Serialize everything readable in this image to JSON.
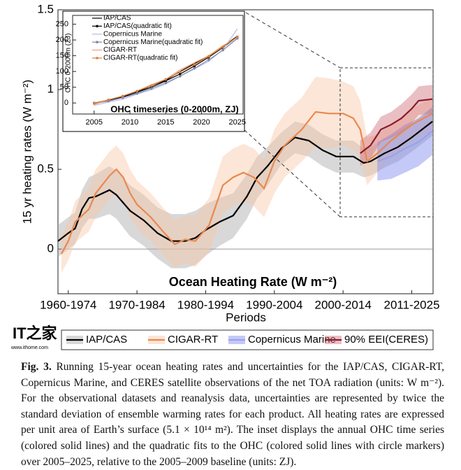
{
  "chart_data": [
    {
      "type": "line",
      "title": "Ocean Heating Rate (W m⁻²)",
      "xlabel": "Periods",
      "ylabel": "15 yr heating rates (W m⁻²)",
      "xlim": [
        1958.5,
        2013.1
      ],
      "ylim": [
        -0.28,
        1.5
      ],
      "xticks": [
        {
          "value": 1960,
          "label": "1960-1974"
        },
        {
          "value": 1970,
          "label": "1970-1984"
        },
        {
          "value": 1980,
          "label": "1980-1994"
        },
        {
          "value": 1990,
          "label": "1990-2004"
        },
        {
          "value": 2000,
          "label": "2000-2014"
        },
        {
          "value": 2010,
          "label": "2011-2025"
        }
      ],
      "yticks": [
        0,
        0.5,
        1,
        1.5
      ],
      "grid": false,
      "legend": "bottom",
      "series": [
        {
          "name": "IAP/CAS",
          "color": "#000000",
          "band_color": "#a9a9a9",
          "x": [
            1958.5,
            1960,
            1961,
            1962,
            1963,
            1964,
            1966,
            1967,
            1969,
            1971,
            1973,
            1975,
            1977,
            1978.5,
            1980,
            1982,
            1984,
            1986,
            1987.5,
            1989,
            1991,
            1993,
            1995,
            1997,
            1999,
            2001.5,
            2003,
            2004,
            2006,
            2008,
            2010,
            2013
          ],
          "values": [
            0.05,
            0.1,
            0.13,
            0.25,
            0.32,
            0.33,
            0.37,
            0.34,
            0.24,
            0.18,
            0.1,
            0.05,
            0.05,
            0.07,
            0.12,
            0.17,
            0.21,
            0.33,
            0.45,
            0.52,
            0.63,
            0.7,
            0.68,
            0.62,
            0.58,
            0.58,
            0.54,
            0.55,
            0.6,
            0.64,
            0.7,
            0.8
          ],
          "errors": [
            0.1,
            0.1,
            0.1,
            0.12,
            0.13,
            0.14,
            0.15,
            0.15,
            0.16,
            0.16,
            0.16,
            0.17,
            0.17,
            0.17,
            0.16,
            0.15,
            0.14,
            0.14,
            0.13,
            0.12,
            0.1,
            0.1,
            0.1,
            0.1,
            0.1,
            0.1,
            0.09,
            0.09,
            0.09,
            0.09,
            0.09,
            0.09
          ]
        },
        {
          "name": "CIGAR-RT",
          "color": "#e8894f",
          "band_color": "#f9c8a8",
          "x": [
            1959,
            1960,
            1961,
            1963,
            1964,
            1966,
            1967,
            1968,
            1969,
            1970,
            1972,
            1974,
            1975.5,
            1977,
            1978.5,
            1980.5,
            1982.5,
            1984,
            1985.5,
            1987,
            1988.5,
            1990,
            1991.5,
            1994,
            1996,
            1998,
            2000,
            2001.5,
            2002.5,
            2003.5,
            2005,
            2007,
            2010,
            2013
          ],
          "values": [
            -0.03,
            0.05,
            0.17,
            0.25,
            0.35,
            0.46,
            0.5,
            0.45,
            0.35,
            0.28,
            0.2,
            0.1,
            0.03,
            0.06,
            0.05,
            0.15,
            0.4,
            0.45,
            0.48,
            0.45,
            0.38,
            0.55,
            0.65,
            0.75,
            0.86,
            0.85,
            0.85,
            0.82,
            0.75,
            0.55,
            0.6,
            0.68,
            0.78,
            0.85
          ],
          "errors": [
            0.12,
            0.12,
            0.13,
            0.14,
            0.15,
            0.15,
            0.15,
            0.15,
            0.15,
            0.15,
            0.15,
            0.15,
            0.15,
            0.15,
            0.16,
            0.17,
            0.18,
            0.18,
            0.18,
            0.18,
            0.18,
            0.2,
            0.2,
            0.2,
            0.22,
            0.22,
            0.2,
            0.2,
            0.18,
            0.15,
            0.12,
            0.1,
            0.1,
            0.1
          ]
        },
        {
          "name": "Copernicus Marine",
          "color": "#9aa3e8",
          "band_color": "#7f88f0",
          "x": [
            2005,
            2007,
            2009,
            2011,
            2013
          ],
          "values": [
            0.55,
            0.58,
            0.63,
            0.67,
            0.74
          ],
          "errors": [
            0.12,
            0.14,
            0.15,
            0.15,
            0.15
          ]
        },
        {
          "name": "90% EEI(CERES)",
          "color": "#8b1a2b",
          "band_color": "#d0707c",
          "x": [
            2002.5,
            2004,
            2005.5,
            2007,
            2008.5,
            2010,
            2011,
            2013
          ],
          "values": [
            0.6,
            0.65,
            0.75,
            0.78,
            0.82,
            0.88,
            0.93,
            0.94
          ],
          "errors": [
            0.08,
            0.08,
            0.08,
            0.08,
            0.09,
            0.09,
            0.09,
            0.09
          ]
        }
      ]
    },
    {
      "type": "line",
      "title": "OHC timeseries (0-2000m, ZJ)",
      "ylabel": "OHC 0-2000m (ZJ)",
      "xlim": [
        2002,
        2025.8
      ],
      "ylim": [
        -35,
        278
      ],
      "xticks": [
        2005,
        2010,
        2015,
        2020,
        2025
      ],
      "yticks": [
        0,
        50,
        100,
        150,
        200,
        250
      ],
      "grid": false,
      "legend": "upper left",
      "x": [
        2005,
        2007,
        2009,
        2011,
        2013,
        2015,
        2017,
        2019,
        2021,
        2023,
        2025
      ],
      "series": [
        {
          "name": "IAP/CAS",
          "color": "#000000",
          "values": [
            -3,
            8,
            18,
            35,
            55,
            72,
            100,
            125,
            150,
            180,
            212
          ]
        },
        {
          "name": "IAP/CAS(quadratic fit)",
          "color": "#000000",
          "marker": true,
          "values": [
            0,
            8,
            20,
            34,
            50,
            70,
            92,
            117,
            145,
            176,
            210
          ]
        },
        {
          "name": "Copernicus Marine",
          "color": "#b4bde8",
          "values": [
            -8,
            3,
            12,
            28,
            42,
            60,
            85,
            108,
            132,
            170,
            235
          ]
        },
        {
          "name": "Copernicus Marine(quadratic fit)",
          "color": "#7f86a8",
          "marker": true,
          "values": [
            -2,
            6,
            17,
            30,
            46,
            64,
            85,
            110,
            137,
            168,
            205
          ]
        },
        {
          "name": "CIGAR-RT",
          "color": "#f0a070",
          "values": [
            -5,
            10,
            22,
            38,
            58,
            75,
            105,
            128,
            150,
            182,
            208
          ]
        },
        {
          "name": "CIGAR-RT(quadratic fit)",
          "color": "#d9803f",
          "marker": true,
          "values": [
            0,
            10,
            22,
            38,
            55,
            75,
            98,
            122,
            148,
            178,
            210
          ]
        }
      ]
    }
  ],
  "watermark": {
    "logo": "IT之家",
    "url": "www.ithome.com"
  },
  "caption": {
    "label": "Fig. 3.",
    "text": "Running 15-year ocean heating rates and uncertainties for the IAP/CAS, CIGAR-RT, Copernicus Marine, and CERES satellite observations of the net TOA radiation (units: W m⁻²). For the observational datasets and reanalysis data, uncertainties are represented by twice the standard deviation of ensemble warming rates for each product. All heating rates are expressed per unit area of Earth’s surface (5.1 × 10¹⁴ m²). The inset displays the annual OHC time series (colored solid lines) and the quadratic fits to the OHC (colored solid lines with circle markers) over 2005–2025, relative to the 2005–2009 baseline (units: ZJ)."
  }
}
